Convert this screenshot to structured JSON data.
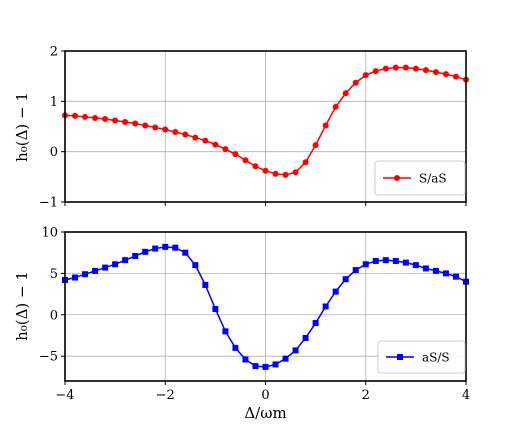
{
  "chart_data": [
    {
      "type": "line",
      "ylabel": "h₀(Δ) − 1",
      "xlabel": "",
      "xlim": [
        -4,
        4
      ],
      "ylim": [
        -1,
        2
      ],
      "xticks": [
        -4,
        -2,
        0,
        2,
        4
      ],
      "xtick_labels_shown": false,
      "yticks": [
        -1,
        0,
        1,
        2
      ],
      "ytick_labels": [
        "−1",
        "0",
        "1",
        "2"
      ],
      "grid": true,
      "legend_position": "lower-right",
      "series": [
        {
          "name": "S/aS",
          "color": "#ff0000",
          "marker": "circle",
          "x": [
            -4.0,
            -3.8,
            -3.6,
            -3.4,
            -3.2,
            -3.0,
            -2.8,
            -2.6,
            -2.4,
            -2.2,
            -2.0,
            -1.8,
            -1.6,
            -1.4,
            -1.2,
            -1.0,
            -0.8,
            -0.6,
            -0.4,
            -0.2,
            0.0,
            0.2,
            0.4,
            0.6,
            0.8,
            1.0,
            1.2,
            1.4,
            1.6,
            1.8,
            2.0,
            2.2,
            2.4,
            2.6,
            2.8,
            3.0,
            3.2,
            3.4,
            3.6,
            3.8,
            4.0
          ],
          "y": [
            0.72,
            0.71,
            0.69,
            0.67,
            0.65,
            0.62,
            0.59,
            0.56,
            0.52,
            0.48,
            0.44,
            0.39,
            0.34,
            0.28,
            0.22,
            0.14,
            0.05,
            -0.05,
            -0.17,
            -0.29,
            -0.38,
            -0.44,
            -0.46,
            -0.41,
            -0.21,
            0.13,
            0.52,
            0.89,
            1.16,
            1.37,
            1.52,
            1.6,
            1.65,
            1.67,
            1.67,
            1.65,
            1.62,
            1.58,
            1.54,
            1.49,
            1.43
          ]
        }
      ]
    },
    {
      "type": "line",
      "ylabel": "h₀(Δ) − 1",
      "xlabel": "Δ/ωm",
      "xlim": [
        -4,
        4
      ],
      "ylim": [
        -8,
        10
      ],
      "xticks": [
        -4,
        -2,
        0,
        2,
        4
      ],
      "xtick_labels": [
        "−4",
        "−2",
        "0",
        "2",
        "4"
      ],
      "yticks": [
        -5,
        0,
        5,
        10
      ],
      "ytick_labels": [
        "−5",
        "0",
        "5",
        "10"
      ],
      "grid": true,
      "legend_position": "lower-right",
      "series": [
        {
          "name": "aS/S",
          "color": "#0000ff",
          "marker": "square",
          "x": [
            -4.0,
            -3.8,
            -3.6,
            -3.4,
            -3.2,
            -3.0,
            -2.8,
            -2.6,
            -2.4,
            -2.2,
            -2.0,
            -1.8,
            -1.6,
            -1.4,
            -1.2,
            -1.0,
            -0.8,
            -0.6,
            -0.4,
            -0.2,
            0.0,
            0.2,
            0.4,
            0.6,
            0.8,
            1.0,
            1.2,
            1.4,
            1.6,
            1.8,
            2.0,
            2.2,
            2.4,
            2.6,
            2.8,
            3.0,
            3.2,
            3.4,
            3.6,
            3.8,
            4.0
          ],
          "y": [
            4.2,
            4.5,
            4.9,
            5.3,
            5.7,
            6.1,
            6.6,
            7.1,
            7.6,
            8.0,
            8.2,
            8.1,
            7.5,
            6.0,
            3.6,
            0.7,
            -2.0,
            -4.0,
            -5.4,
            -6.2,
            -6.3,
            -6.0,
            -5.3,
            -4.3,
            -2.8,
            -1.0,
            1.0,
            2.8,
            4.3,
            5.4,
            6.1,
            6.5,
            6.6,
            6.5,
            6.3,
            6.0,
            5.6,
            5.3,
            5.0,
            4.6,
            4.0
          ]
        }
      ]
    }
  ]
}
